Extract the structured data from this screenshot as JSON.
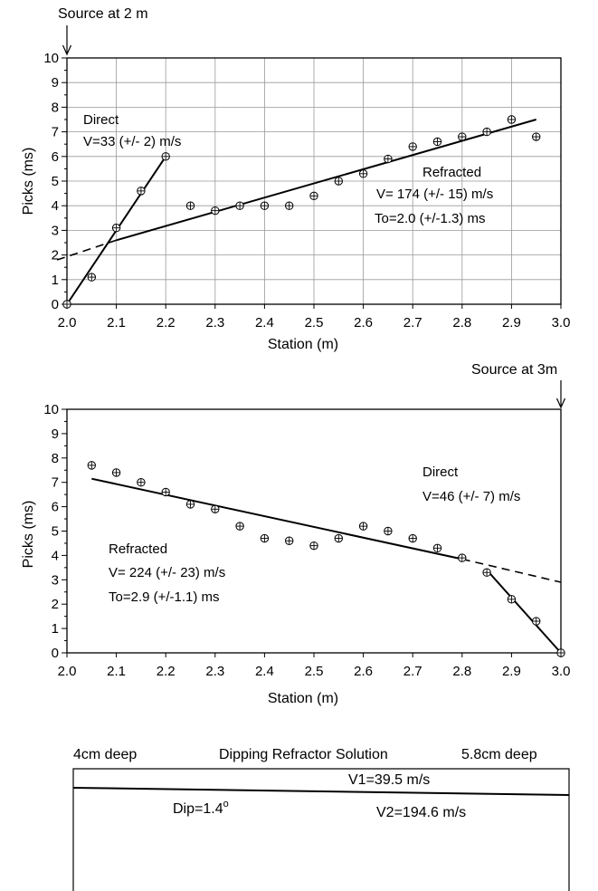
{
  "chart_data": [
    {
      "type": "scatter",
      "source_label": "Source at 2 m",
      "xlabel": "Station (m)",
      "ylabel": "Picks (ms)",
      "xlim": [
        2.0,
        3.0
      ],
      "ylim": [
        0,
        10
      ],
      "x_ticks": [
        "2.0",
        "2.1",
        "2.2",
        "2.3",
        "2.4",
        "2.5",
        "2.6",
        "2.7",
        "2.8",
        "2.9",
        "3.0"
      ],
      "y_ticks": [
        "0",
        "1",
        "2",
        "3",
        "4",
        "5",
        "6",
        "7",
        "8",
        "9",
        "10"
      ],
      "grid": true,
      "picks": {
        "x": [
          2.0,
          2.05,
          2.1,
          2.15,
          2.2,
          2.25,
          2.3,
          2.35,
          2.4,
          2.45,
          2.5,
          2.55,
          2.6,
          2.65,
          2.7,
          2.75,
          2.8,
          2.85,
          2.9,
          2.95
        ],
        "y": [
          0.0,
          1.1,
          3.1,
          4.6,
          6.0,
          4.0,
          3.8,
          4.0,
          4.0,
          4.0,
          4.4,
          5.0,
          5.3,
          5.9,
          6.4,
          6.6,
          6.8,
          7.0,
          7.5,
          6.8
        ]
      },
      "direct_fit": {
        "x": [
          2.0,
          2.2
        ],
        "y": [
          0.0,
          6.0
        ]
      },
      "refracted_fit": {
        "x": [
          2.1,
          2.95
        ],
        "y": [
          2.6,
          7.5
        ]
      },
      "refracted_extrapolation": {
        "x": [
          1.98,
          2.1
        ],
        "y": [
          1.8,
          2.6
        ]
      },
      "annotations": {
        "direct_title": "Direct",
        "direct_velocity": "V=33 (+/-  2) m/s",
        "refracted_title": "Refracted",
        "refracted_velocity": "V= 174 (+/- 15) m/s",
        "refracted_intercept": "To=2.0 (+/-1.3) ms"
      }
    },
    {
      "type": "scatter",
      "source_label": "Source at 3m",
      "xlabel": "Station (m)",
      "ylabel": "Picks (ms)",
      "xlim": [
        2.0,
        3.0
      ],
      "ylim": [
        0,
        10
      ],
      "x_ticks": [
        "2.0",
        "2.1",
        "2.2",
        "2.3",
        "2.4",
        "2.5",
        "2.6",
        "2.7",
        "2.8",
        "2.9",
        "3.0"
      ],
      "y_ticks": [
        "0",
        "1",
        "2",
        "3",
        "4",
        "5",
        "6",
        "7",
        "8",
        "9",
        "10"
      ],
      "grid": false,
      "picks": {
        "x": [
          2.05,
          2.1,
          2.15,
          2.2,
          2.25,
          2.3,
          2.35,
          2.4,
          2.45,
          2.5,
          2.55,
          2.6,
          2.65,
          2.7,
          2.75,
          2.8,
          2.85,
          2.9,
          2.95,
          3.0
        ],
        "y": [
          7.7,
          7.4,
          7.0,
          6.6,
          6.1,
          5.9,
          5.2,
          4.7,
          4.6,
          4.4,
          4.7,
          5.2,
          5.0,
          4.7,
          4.3,
          3.9,
          3.3,
          2.2,
          1.3,
          0.0
        ]
      },
      "direct_fit": {
        "x": [
          2.85,
          3.0
        ],
        "y": [
          3.4,
          0.0
        ]
      },
      "refracted_fit": {
        "x": [
          2.05,
          2.8
        ],
        "y": [
          7.15,
          3.85
        ]
      },
      "refracted_extrapolation": {
        "x": [
          2.8,
          3.0
        ],
        "y": [
          3.85,
          2.9
        ]
      },
      "annotations": {
        "direct_title": "Direct",
        "direct_velocity": "V=46 (+/- 7) m/s",
        "refracted_title": "Refracted",
        "refracted_velocity": "V= 224 (+/- 23) m/s",
        "refracted_intercept": "To=2.9 (+/-1.1) ms"
      }
    }
  ],
  "solution": {
    "title": "Dipping Refractor Solution",
    "left_depth": "4cm deep",
    "right_depth": "5.8cm deep",
    "v1": "V1=39.5 m/s",
    "v2": "V2=194.6 m/s",
    "dip_label": "Dip=1.4",
    "dip_unit": "o"
  }
}
